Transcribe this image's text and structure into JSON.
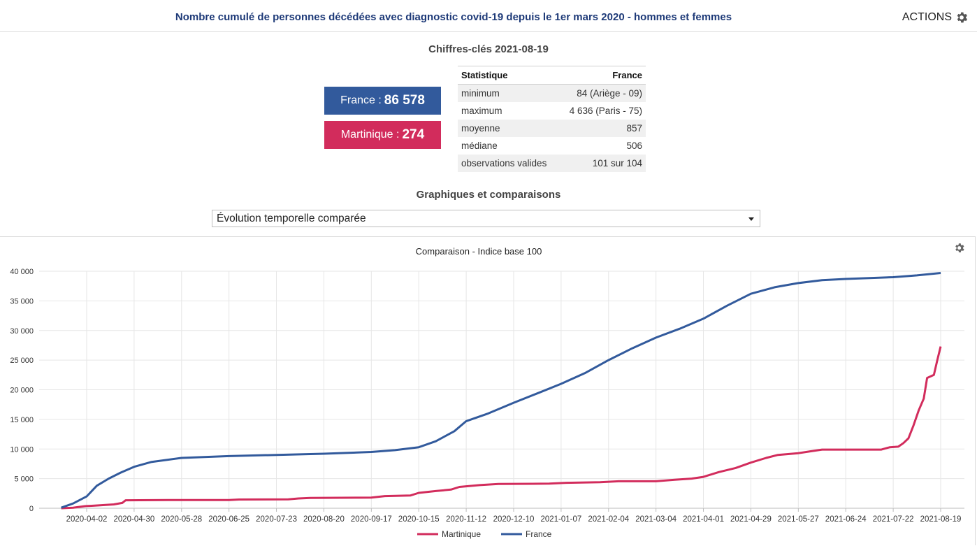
{
  "header": {
    "title": "Nombre cumulé de personnes décédées avec diagnostic covid-19 depuis le 1er mars 2020 - hommes et femmes",
    "actions_label": "ACTIONS"
  },
  "key_figures": {
    "title": "Chiffres-clés 2021-08-19",
    "france_label": "France : ",
    "france_value": "86 578",
    "martinique_label": "Martinique : ",
    "martinique_value": "274",
    "france_color": "#325a9c",
    "martinique_color": "#d22c5c"
  },
  "stats_table": {
    "headers": [
      "Statistique",
      "France"
    ],
    "rows": [
      [
        "minimum",
        "84 (Ariège - 09)"
      ],
      [
        "maximum",
        "4 636 (Paris - 75)"
      ],
      [
        "moyenne",
        "857"
      ],
      [
        "médiane",
        "506"
      ],
      [
        "observations valides",
        "101 sur 104"
      ]
    ]
  },
  "graphs": {
    "title": "Graphiques et comparaisons",
    "selected_option": "Évolution temporelle comparée"
  },
  "chart_data": {
    "type": "line",
    "title": "Comparaison - Indice base 100",
    "ylim": [
      0,
      40000
    ],
    "y_ticks": [
      0,
      5000,
      10000,
      15000,
      20000,
      25000,
      30000,
      35000,
      40000
    ],
    "y_tick_labels": [
      "0",
      "5 000",
      "10 000",
      "15 000",
      "20 000",
      "25 000",
      "30 000",
      "35 000",
      "40 000"
    ],
    "x_tick_labels": [
      "2020-04-02",
      "2020-04-30",
      "2020-05-28",
      "2020-06-25",
      "2020-07-23",
      "2020-08-20",
      "2020-09-17",
      "2020-10-15",
      "2020-11-12",
      "2020-12-10",
      "2021-01-07",
      "2021-02-04",
      "2021-03-04",
      "2021-04-01",
      "2021-04-29",
      "2021-05-27",
      "2021-06-24",
      "2021-07-22",
      "2021-08-19"
    ],
    "legend_position": "bottom",
    "grid": true,
    "series": [
      {
        "name": "Martinique",
        "color": "#d22c5c",
        "points": [
          [
            "2020-03-18",
            0
          ],
          [
            "2020-03-25",
            100
          ],
          [
            "2020-04-01",
            350
          ],
          [
            "2020-04-10",
            500
          ],
          [
            "2020-04-18",
            650
          ],
          [
            "2020-04-23",
            900
          ],
          [
            "2020-04-25",
            1350
          ],
          [
            "2020-05-20",
            1380
          ],
          [
            "2020-06-25",
            1380
          ],
          [
            "2020-07-01",
            1480
          ],
          [
            "2020-07-30",
            1500
          ],
          [
            "2020-08-05",
            1650
          ],
          [
            "2020-08-12",
            1750
          ],
          [
            "2020-09-10",
            1780
          ],
          [
            "2020-09-17",
            1800
          ],
          [
            "2020-09-25",
            2050
          ],
          [
            "2020-10-10",
            2150
          ],
          [
            "2020-10-15",
            2600
          ],
          [
            "2020-10-25",
            2900
          ],
          [
            "2020-11-03",
            3150
          ],
          [
            "2020-11-08",
            3600
          ],
          [
            "2020-11-20",
            3900
          ],
          [
            "2020-12-01",
            4100
          ],
          [
            "2020-12-31",
            4150
          ],
          [
            "2021-01-10",
            4300
          ],
          [
            "2021-01-30",
            4400
          ],
          [
            "2021-02-10",
            4550
          ],
          [
            "2021-03-04",
            4550
          ],
          [
            "2021-03-15",
            4800
          ],
          [
            "2021-03-25",
            5000
          ],
          [
            "2021-04-01",
            5300
          ],
          [
            "2021-04-10",
            6100
          ],
          [
            "2021-04-20",
            6800
          ],
          [
            "2021-04-29",
            7700
          ],
          [
            "2021-05-08",
            8500
          ],
          [
            "2021-05-15",
            9000
          ],
          [
            "2021-05-27",
            9300
          ],
          [
            "2021-06-03",
            9600
          ],
          [
            "2021-06-10",
            9900
          ],
          [
            "2021-07-15",
            9900
          ],
          [
            "2021-07-20",
            10300
          ],
          [
            "2021-07-25",
            10400
          ],
          [
            "2021-07-28",
            11000
          ],
          [
            "2021-07-31",
            11800
          ],
          [
            "2021-08-03",
            14000
          ],
          [
            "2021-08-06",
            16500
          ],
          [
            "2021-08-09",
            18500
          ],
          [
            "2021-08-11",
            22000
          ],
          [
            "2021-08-15",
            22500
          ],
          [
            "2021-08-17",
            25000
          ],
          [
            "2021-08-19",
            27300
          ]
        ]
      },
      {
        "name": "France",
        "color": "#325a9c",
        "points": [
          [
            "2020-03-18",
            100
          ],
          [
            "2020-03-25",
            800
          ],
          [
            "2020-04-02",
            2000
          ],
          [
            "2020-04-08",
            3800
          ],
          [
            "2020-04-15",
            5000
          ],
          [
            "2020-04-22",
            6000
          ],
          [
            "2020-04-30",
            7000
          ],
          [
            "2020-05-10",
            7800
          ],
          [
            "2020-05-28",
            8500
          ],
          [
            "2020-06-25",
            8800
          ],
          [
            "2020-07-23",
            9000
          ],
          [
            "2020-08-20",
            9200
          ],
          [
            "2020-09-17",
            9500
          ],
          [
            "2020-10-01",
            9800
          ],
          [
            "2020-10-15",
            10300
          ],
          [
            "2020-10-25",
            11300
          ],
          [
            "2020-11-05",
            13000
          ],
          [
            "2020-11-12",
            14700
          ],
          [
            "2020-11-25",
            16000
          ],
          [
            "2020-12-10",
            17800
          ],
          [
            "2020-12-25",
            19500
          ],
          [
            "2021-01-07",
            21000
          ],
          [
            "2021-01-21",
            22800
          ],
          [
            "2021-02-04",
            25000
          ],
          [
            "2021-02-18",
            27000
          ],
          [
            "2021-03-04",
            28800
          ],
          [
            "2021-03-18",
            30300
          ],
          [
            "2021-04-01",
            32000
          ],
          [
            "2021-04-15",
            34200
          ],
          [
            "2021-04-29",
            36200
          ],
          [
            "2021-05-13",
            37300
          ],
          [
            "2021-05-27",
            38000
          ],
          [
            "2021-06-10",
            38500
          ],
          [
            "2021-06-24",
            38700
          ],
          [
            "2021-07-22",
            39000
          ],
          [
            "2021-08-05",
            39300
          ],
          [
            "2021-08-19",
            39700
          ]
        ]
      }
    ]
  }
}
